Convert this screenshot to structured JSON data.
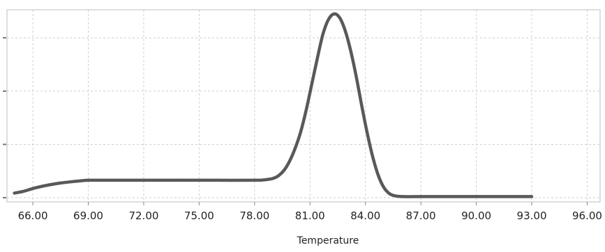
{
  "chart_data": {
    "type": "line",
    "title": "",
    "xlabel": "Temperature",
    "ylabel": "",
    "xlim": [
      64.6,
      96.7
    ],
    "ylim": [
      0,
      1
    ],
    "x_ticks": [
      66,
      69,
      72,
      75,
      78,
      81,
      84,
      87,
      90,
      93,
      96
    ],
    "x_tick_labels": [
      "66.00",
      "69.00",
      "72.00",
      "75.00",
      "78.00",
      "81.00",
      "84.00",
      "87.00",
      "90.00",
      "93.00",
      "96.00"
    ],
    "y_gridlines": [
      0,
      0.29,
      0.58,
      0.87
    ],
    "grid": true,
    "colors": {
      "line": "#595959",
      "grid": "#cfcfcf",
      "frame": "#bdbdbd",
      "text": "#222222"
    },
    "series": [
      {
        "x": [
          65.0,
          65.5,
          66.0,
          66.5,
          67.0,
          67.5,
          68.0,
          68.5,
          69.0,
          70.0,
          72.0,
          74.0,
          76.0,
          78.0,
          78.5,
          79.0,
          79.3,
          79.6,
          79.9,
          80.2,
          80.5,
          80.8,
          81.1,
          81.4,
          81.7,
          82.0,
          82.3,
          82.6,
          82.9,
          83.2,
          83.5,
          83.8,
          84.1,
          84.4,
          84.7,
          85.0,
          85.3,
          85.6,
          86.0,
          87.0,
          90.0,
          93.0
        ],
        "y": [
          0.025,
          0.035,
          0.05,
          0.062,
          0.072,
          0.08,
          0.086,
          0.091,
          0.095,
          0.095,
          0.095,
          0.095,
          0.095,
          0.095,
          0.097,
          0.105,
          0.12,
          0.15,
          0.2,
          0.27,
          0.36,
          0.48,
          0.62,
          0.76,
          0.89,
          0.97,
          1.0,
          0.98,
          0.91,
          0.8,
          0.66,
          0.5,
          0.35,
          0.22,
          0.12,
          0.055,
          0.022,
          0.01,
          0.006,
          0.006,
          0.006,
          0.006
        ]
      }
    ]
  }
}
